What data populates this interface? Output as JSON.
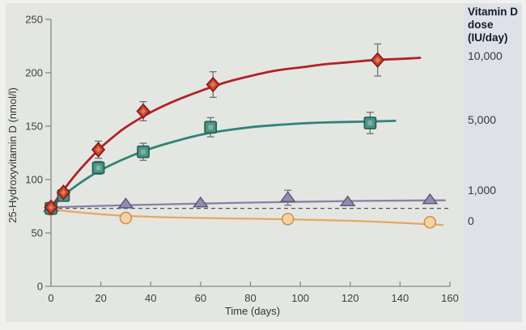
{
  "figure": {
    "y_axis_title": "25-Hydroxyvitamin D (nmol/l)",
    "x_axis_title": "Time (days)",
    "legend": {
      "header_lines": [
        "Vitamin D",
        "dose",
        "(IU/day)"
      ],
      "entries": [
        {
          "label": "10,000"
        },
        {
          "label": "5,000"
        },
        {
          "label": "1,000"
        },
        {
          "label": "0"
        }
      ]
    }
  },
  "colors": {
    "red_line": "#b2202a",
    "red_fill": "#c64733",
    "red_stroke": "#871a17",
    "red_inner": "#e37a50",
    "green_line": "#2d8577",
    "green_fill": "#4f9485",
    "green_stroke": "#1f6054",
    "green_inner": "#7fb2a2",
    "purple_line": "#8a81a6",
    "purple_fill": "#928cad",
    "purple_stroke": "#5c5678",
    "orange_line": "#e7a765",
    "orange_fill": "#f3d2a4",
    "orange_stroke": "#cf8d4b",
    "error_bar": "#6e7174",
    "dashed_baseline": "#53565a",
    "axis": "#87898c",
    "panel_bg": "#e4e6e2",
    "sidebar_bg": "#dee2e8",
    "frame_bg": "#f0f1ee"
  },
  "chart_data": {
    "type": "line",
    "title": "",
    "xlabel": "Time (days)",
    "ylabel": "25-Hydroxyvitamin D (nmol/l)",
    "xlim": [
      0,
      160
    ],
    "ylim": [
      0,
      250
    ],
    "x_ticks": [
      0,
      20,
      40,
      60,
      80,
      100,
      120,
      140,
      160
    ],
    "y_ticks": [
      0,
      50,
      100,
      150,
      200,
      250
    ],
    "grid": false,
    "legend_position": "right-sidebar",
    "baseline_dashed_value": 73,
    "series": [
      {
        "name": "10,000 IU/day",
        "dose_label": "10,000",
        "marker": "diamond",
        "color_key": "red",
        "points": [
          [
            0,
            74
          ],
          [
            5,
            88
          ],
          [
            19,
            128
          ],
          [
            37,
            164
          ],
          [
            65,
            189
          ],
          [
            131,
            212
          ]
        ],
        "error_bars": [
          {
            "day": 19,
            "value": 128,
            "err": 8
          },
          {
            "day": 37,
            "value": 164,
            "err": 9
          },
          {
            "day": 65,
            "value": 189,
            "err": 12
          },
          {
            "day": 131,
            "value": 212,
            "err": 15
          }
        ],
        "trend": [
          [
            0,
            74
          ],
          [
            5,
            90
          ],
          [
            10,
            105
          ],
          [
            15,
            118
          ],
          [
            20,
            130
          ],
          [
            25,
            140
          ],
          [
            30,
            149
          ],
          [
            40,
            163
          ],
          [
            50,
            174
          ],
          [
            60,
            183
          ],
          [
            70,
            191
          ],
          [
            80,
            197
          ],
          [
            90,
            202
          ],
          [
            100,
            205
          ],
          [
            110,
            208
          ],
          [
            120,
            210
          ],
          [
            130,
            212
          ],
          [
            140,
            213
          ],
          [
            148,
            214
          ]
        ]
      },
      {
        "name": "5,000 IU/day",
        "dose_label": "5,000",
        "marker": "square",
        "color_key": "green",
        "points": [
          [
            0,
            73
          ],
          [
            5,
            85
          ],
          [
            19,
            111
          ],
          [
            37,
            126
          ],
          [
            64,
            149
          ],
          [
            128,
            153
          ]
        ],
        "error_bars": [
          {
            "day": 19,
            "value": 111,
            "err": 6
          },
          {
            "day": 37,
            "value": 126,
            "err": 8
          },
          {
            "day": 64,
            "value": 149,
            "err": 9
          },
          {
            "day": 128,
            "value": 153,
            "err": 10
          }
        ],
        "trend": [
          [
            0,
            73
          ],
          [
            5,
            85
          ],
          [
            10,
            94
          ],
          [
            15,
            102
          ],
          [
            20,
            109
          ],
          [
            30,
            120
          ],
          [
            40,
            129
          ],
          [
            50,
            136
          ],
          [
            60,
            142
          ],
          [
            70,
            146
          ],
          [
            80,
            149
          ],
          [
            90,
            151
          ],
          [
            100,
            152.5
          ],
          [
            110,
            153.5
          ],
          [
            120,
            154
          ],
          [
            130,
            154.5
          ],
          [
            138,
            155
          ]
        ]
      },
      {
        "name": "1,000 IU/day",
        "dose_label": "1,000",
        "marker": "triangle",
        "color_key": "purple",
        "points": [
          [
            0,
            74
          ],
          [
            30,
            77
          ],
          [
            60,
            78
          ],
          [
            95,
            83
          ],
          [
            119,
            79
          ],
          [
            152,
            81
          ]
        ],
        "error_bars": [
          {
            "day": 95,
            "value": 83,
            "err": 7
          }
        ],
        "trend": [
          [
            0,
            74
          ],
          [
            30,
            76
          ],
          [
            60,
            77.5
          ],
          [
            95,
            79
          ],
          [
            125,
            80
          ],
          [
            158,
            80.5
          ]
        ]
      },
      {
        "name": "0 IU/day",
        "dose_label": "0",
        "marker": "circle",
        "color_key": "orange",
        "points": [
          [
            0,
            72
          ],
          [
            30,
            64
          ],
          [
            95,
            63
          ],
          [
            152,
            60
          ]
        ],
        "error_bars": [
          {
            "day": 30,
            "value": 64,
            "err": 4
          }
        ],
        "trend": [
          [
            0,
            72
          ],
          [
            15,
            68.5
          ],
          [
            30,
            66
          ],
          [
            45,
            64.8
          ],
          [
            60,
            64
          ],
          [
            80,
            63.3
          ],
          [
            95,
            62.8
          ],
          [
            110,
            62
          ],
          [
            125,
            61
          ],
          [
            140,
            59.5
          ],
          [
            157,
            57.5
          ]
        ]
      }
    ]
  }
}
